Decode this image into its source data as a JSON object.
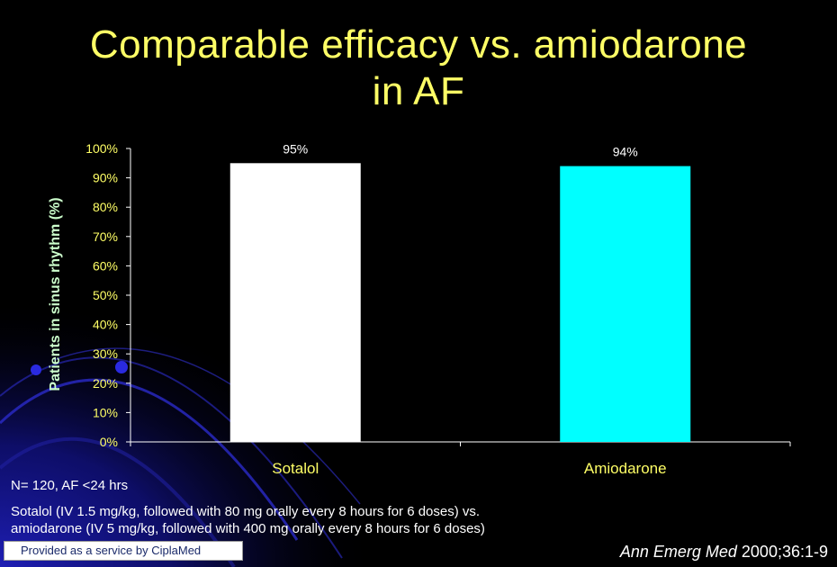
{
  "title_lines": [
    "Comparable efficacy vs. amiodarone",
    "in AF"
  ],
  "colors": {
    "title": "#ffff66",
    "sotalol_bar": "#ffffff",
    "amiodarone_bar": "#00ffff",
    "axis": "#ffffff",
    "y_label": "#ccffcc",
    "background": "#000000",
    "accent_blue": "#1a1aa0"
  },
  "chart_data": {
    "type": "bar",
    "categories": [
      "Sotalol",
      "Amiodarone"
    ],
    "values": [
      95,
      94
    ],
    "value_labels": [
      "95%",
      "94%"
    ],
    "ylabel": "Patients in sinus rhythm (%)",
    "ylim": [
      0,
      100
    ],
    "yticks": [
      "0%",
      "10%",
      "20%",
      "30%",
      "40%",
      "50%",
      "60%",
      "70%",
      "80%",
      "90%",
      "100%"
    ],
    "grid": false,
    "legend": "none"
  },
  "notes": {
    "population": "N= 120, AF <24 hrs",
    "dosing_line1": "Sotalol (IV 1.5 mg/kg, followed with 80 mg orally every 8 hours for 6 doses) vs.",
    "dosing_line2": "amiodarone (IV 5 mg/kg, followed with 400 mg orally every 8 hours for 6 doses)"
  },
  "citation": {
    "journal": "Ann Emerg Med",
    "ref": " 2000;36:1-9"
  },
  "service_badge": "Provided as a service by CiplaMed"
}
